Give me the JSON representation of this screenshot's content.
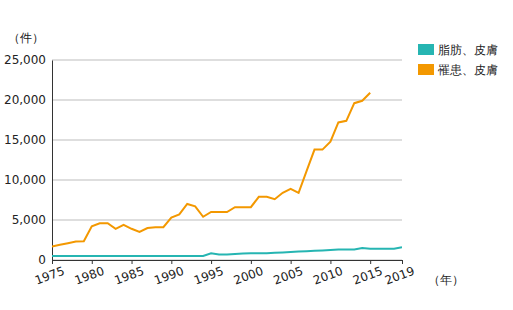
{
  "chart_data": {
    "type": "line",
    "y_label": "（件）",
    "x_label": "（年）",
    "x": [
      1975,
      1976,
      1977,
      1978,
      1979,
      1980,
      1981,
      1982,
      1983,
      1984,
      1985,
      1986,
      1987,
      1988,
      1989,
      1990,
      1991,
      1992,
      1993,
      1994,
      1995,
      1996,
      1997,
      1998,
      1999,
      2000,
      2001,
      2002,
      2003,
      2004,
      2005,
      2006,
      2007,
      2008,
      2009,
      2010,
      2011,
      2012,
      2013,
      2014,
      2015,
      2016,
      2017,
      2018,
      2019
    ],
    "series": [
      {
        "name": "脂肪、皮膚",
        "color": "#26b5b2",
        "values": [
          500,
          500,
          500,
          500,
          500,
          500,
          500,
          500,
          500,
          500,
          500,
          500,
          500,
          500,
          500,
          500,
          500,
          500,
          500,
          500,
          850,
          700,
          700,
          750,
          800,
          850,
          850,
          850,
          900,
          950,
          1000,
          1050,
          1100,
          1150,
          1200,
          1250,
          1300,
          1300,
          1300,
          1500,
          1400,
          1400,
          1400,
          1400,
          1600
        ]
      },
      {
        "name": "罹患、皮膚",
        "color": "#f39800",
        "values": [
          1700,
          1900,
          2100,
          2300,
          2350,
          4200,
          4600,
          4600,
          3900,
          4400,
          3900,
          3500,
          4000,
          4100,
          4100,
          5300,
          5700,
          7000,
          6700,
          5400,
          6000,
          6000,
          6000,
          6600,
          6600,
          6600,
          7900,
          7900,
          7600,
          8400,
          8900,
          8400,
          11100,
          13800,
          13800,
          14800,
          17200,
          17400,
          19600,
          19900,
          20900,
          null,
          null,
          null,
          null
        ]
      }
    ],
    "xlim": [
      1975,
      2019
    ],
    "xticks": [
      1975,
      1980,
      1985,
      1990,
      1995,
      2000,
      2005,
      2010,
      2015,
      2019
    ],
    "ylim": [
      0,
      25000
    ],
    "yticks": [
      0,
      {
        "value": 5000,
        "label": "5,000"
      },
      {
        "value": 10000,
        "label": "10,000"
      },
      {
        "value": 15000,
        "label": "15,000"
      },
      {
        "value": 20000,
        "label": "20,000"
      },
      {
        "value": 25000,
        "label": "25,000"
      }
    ],
    "grid": true,
    "legend": "right"
  }
}
